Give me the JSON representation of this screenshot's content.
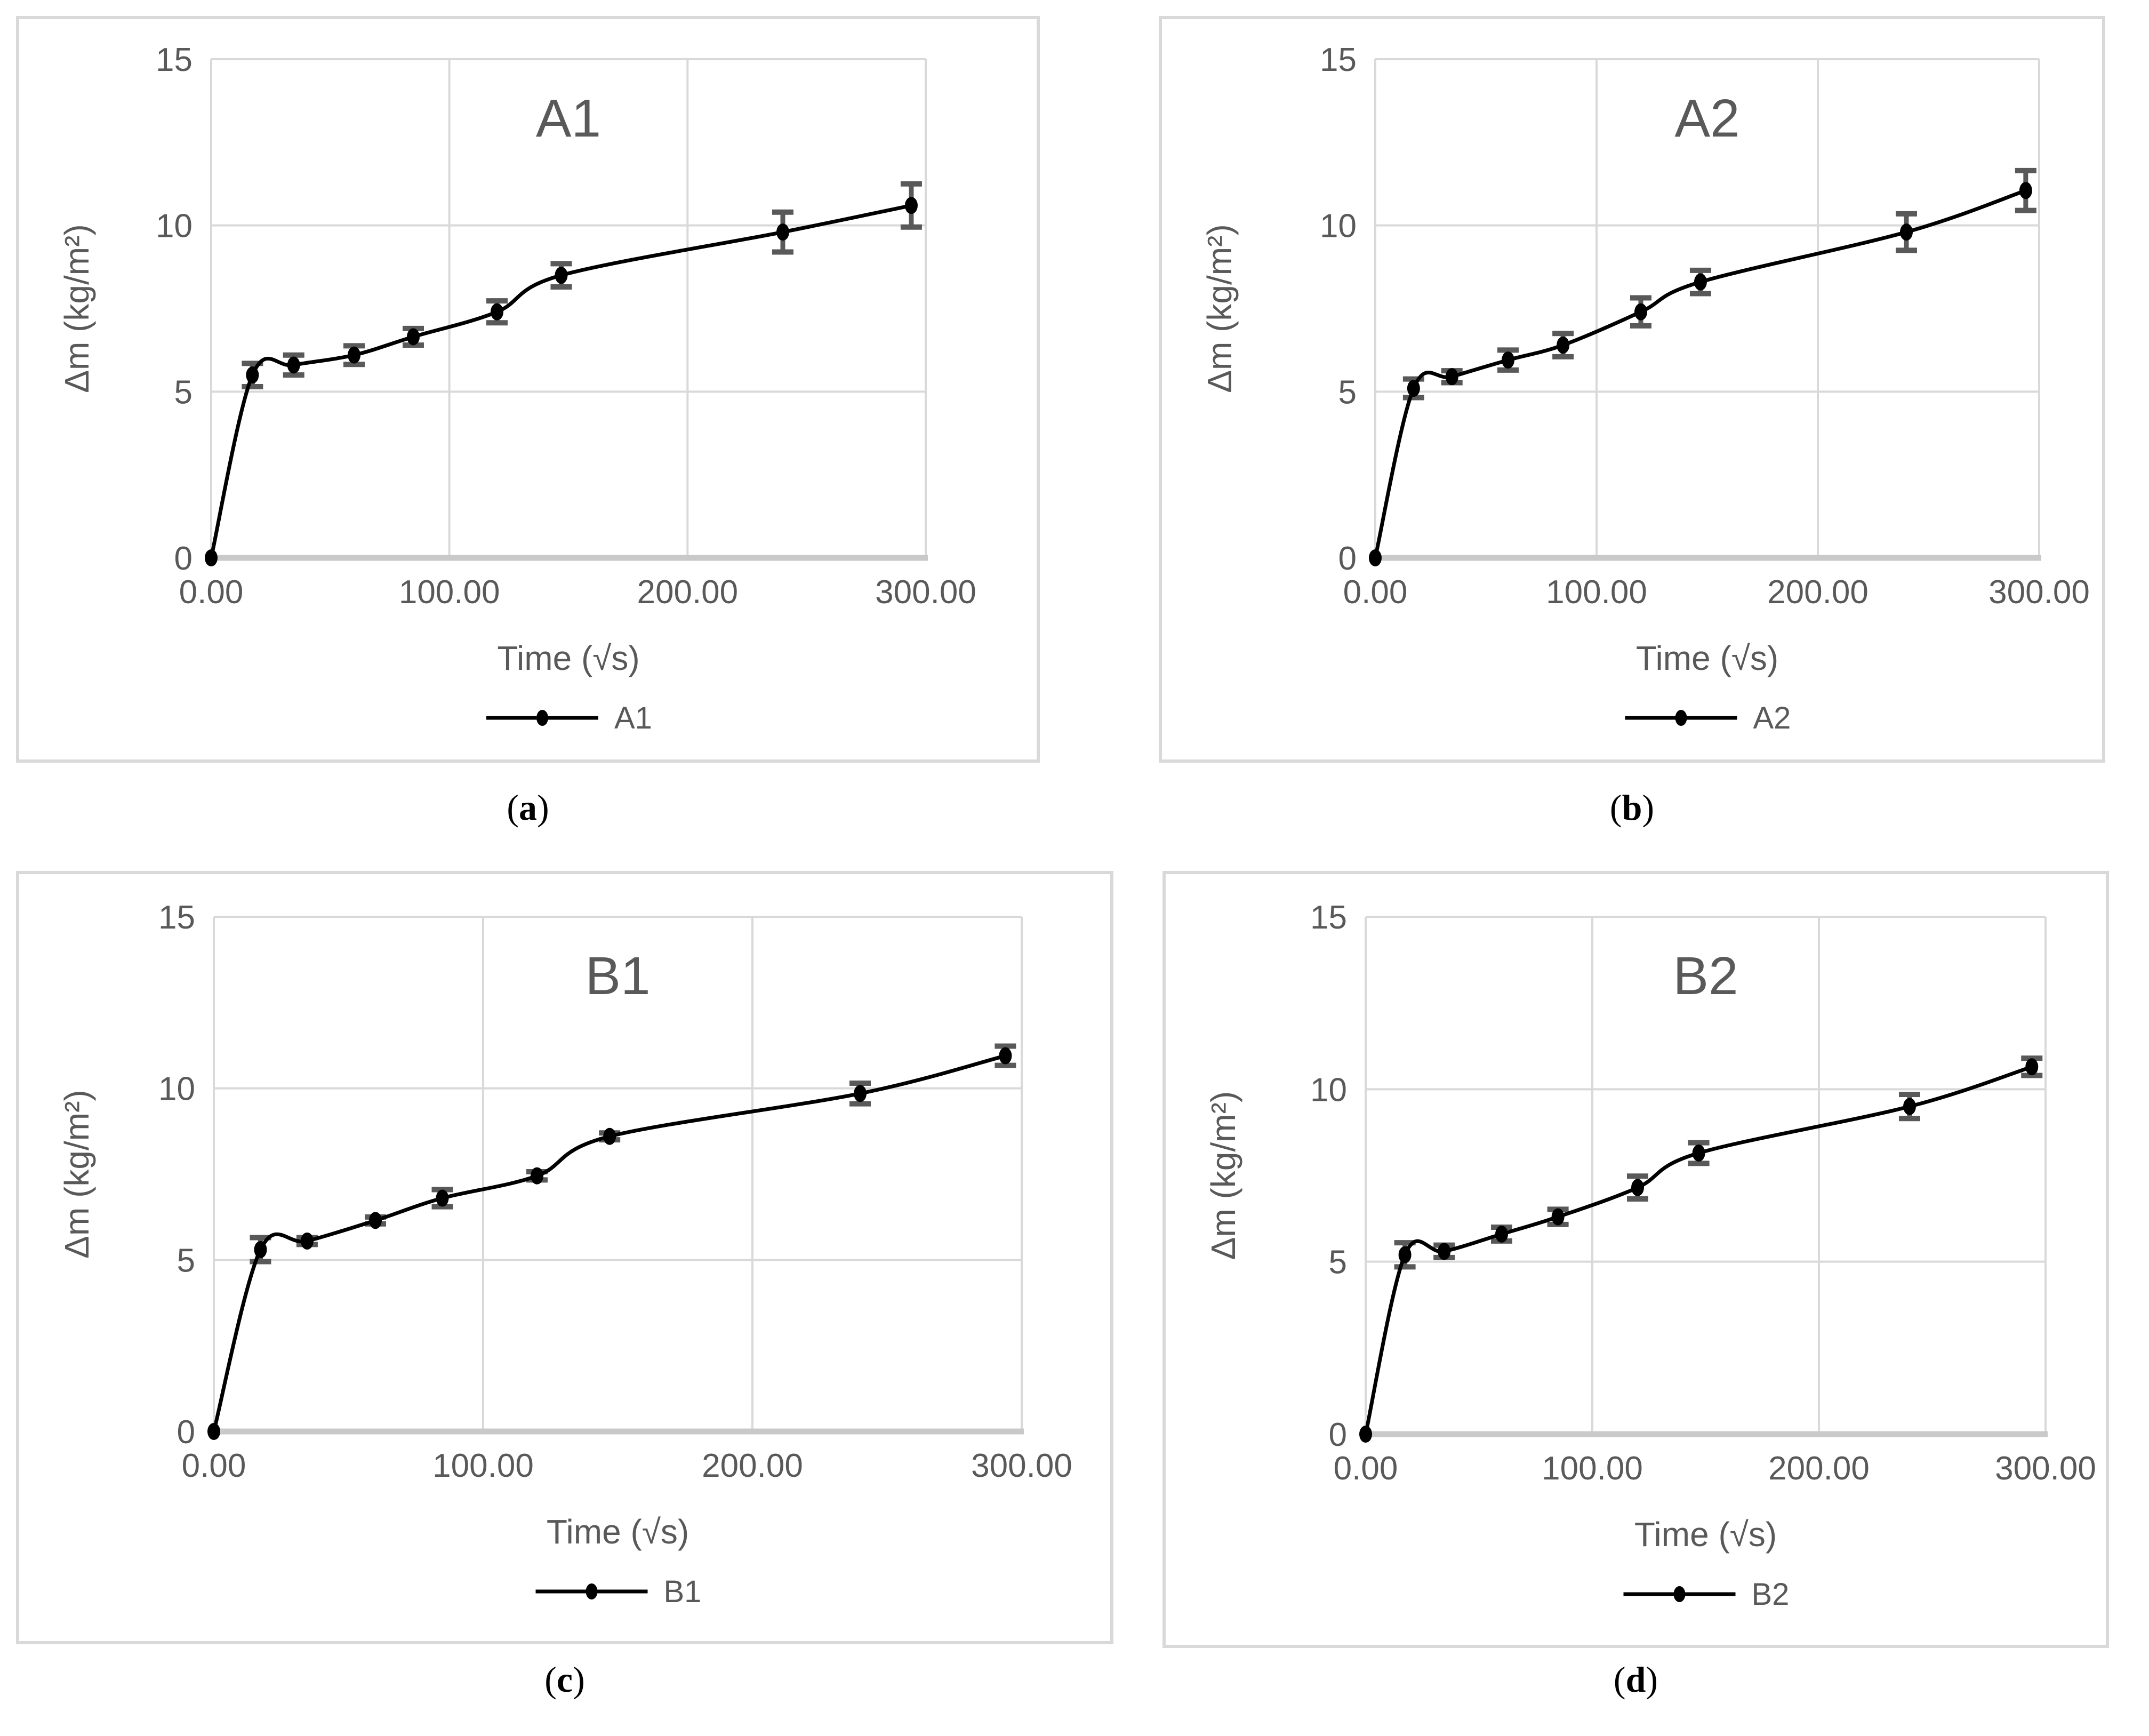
{
  "figure": {
    "description": "Capillary water absorption curves with error bars for four mortar samples",
    "background": "#ffffff"
  },
  "styles": {
    "series_color": "#000000",
    "marker_color": "#000000",
    "error_bar_color": "#595959",
    "gridline_color": "#d9d9d9",
    "axis_baseline_color": "#c9c9c9",
    "axis_text_color": "#595959",
    "panel_border_color": "#d9d9d9",
    "caption_color": "#000000"
  },
  "captions": [
    {
      "pre": "(",
      "letter": "a",
      "post": ")"
    },
    {
      "pre": "(",
      "letter": "b",
      "post": ")"
    },
    {
      "pre": "(",
      "letter": "c",
      "post": ")"
    },
    {
      "pre": "(",
      "letter": "d",
      "post": ")"
    }
  ],
  "chart_data": [
    {
      "id": "A1",
      "type": "line",
      "title": "A1",
      "legend": "A1",
      "legend_position": "bottom",
      "xlabel": "Time (√s)",
      "ylabel": "Δm (kg/m²)",
      "xlim": [
        0,
        300
      ],
      "ylim": [
        0,
        15
      ],
      "xtick_values": [
        0,
        100,
        200,
        300
      ],
      "xtick_labels": [
        "0.00",
        "100.00",
        "200.00",
        "300.00"
      ],
      "ytick_values": [
        0,
        5,
        10,
        15
      ],
      "ytick_labels": [
        "0",
        "5",
        "10",
        "15"
      ],
      "grid": true,
      "x": [
        0,
        17.32,
        34.64,
        60.0,
        84.85,
        120.0,
        146.97,
        240.0,
        293.94
      ],
      "y": [
        0,
        5.5,
        5.8,
        6.1,
        6.65,
        7.4,
        8.5,
        9.8,
        10.6
      ],
      "yerr": [
        0,
        0.35,
        0.3,
        0.28,
        0.25,
        0.33,
        0.35,
        0.6,
        0.65
      ]
    },
    {
      "id": "A2",
      "type": "line",
      "title": "A2",
      "legend": "A2",
      "legend_position": "bottom",
      "xlabel": "Time (√s)",
      "ylabel": "Δm (kg/m²)",
      "xlim": [
        0,
        300
      ],
      "ylim": [
        0,
        15
      ],
      "xtick_values": [
        0,
        100,
        200,
        300
      ],
      "xtick_labels": [
        "0.00",
        "100.00",
        "200.00",
        "300.00"
      ],
      "ytick_values": [
        0,
        5,
        10,
        15
      ],
      "ytick_labels": [
        "0",
        "5",
        "10",
        "15"
      ],
      "grid": true,
      "x": [
        0,
        17.32,
        34.64,
        60.0,
        84.85,
        120.0,
        146.97,
        240.0,
        293.94
      ],
      "y": [
        0,
        5.1,
        5.45,
        5.95,
        6.4,
        7.4,
        8.3,
        9.8,
        11.05
      ],
      "yerr": [
        0,
        0.28,
        0.18,
        0.3,
        0.35,
        0.42,
        0.35,
        0.55,
        0.6
      ]
    },
    {
      "id": "B1",
      "type": "line",
      "title": "B1",
      "legend": "B1",
      "legend_position": "bottom",
      "xlabel": "Time (√s)",
      "ylabel": "Δm (kg/m²)",
      "xlim": [
        0,
        300
      ],
      "ylim": [
        0,
        15
      ],
      "xtick_values": [
        0,
        100,
        200,
        300
      ],
      "xtick_labels": [
        "0.00",
        "100.00",
        "200.00",
        "300.00"
      ],
      "ytick_values": [
        0,
        5,
        10,
        15
      ],
      "ytick_labels": [
        "0",
        "5",
        "10",
        "15"
      ],
      "grid": true,
      "x": [
        0,
        17.32,
        34.64,
        60.0,
        84.85,
        120.0,
        146.97,
        240.0,
        293.94
      ],
      "y": [
        0,
        5.3,
        5.55,
        6.15,
        6.8,
        7.45,
        8.6,
        9.85,
        10.95
      ],
      "yerr": [
        0,
        0.35,
        0.1,
        0.1,
        0.25,
        0.12,
        0.1,
        0.3,
        0.28
      ]
    },
    {
      "id": "B2",
      "type": "line",
      "title": "B2",
      "legend": "B2",
      "legend_position": "bottom",
      "xlabel": "Time (√s)",
      "ylabel": "Δm (kg/m²)",
      "xlim": [
        0,
        300
      ],
      "ylim": [
        0,
        15
      ],
      "xtick_values": [
        0,
        100,
        200,
        300
      ],
      "xtick_labels": [
        "0.00",
        "100.00",
        "200.00",
        "300.00"
      ],
      "ytick_values": [
        0,
        5,
        10,
        15
      ],
      "ytick_labels": [
        "0",
        "5",
        "10",
        "15"
      ],
      "grid": true,
      "x": [
        0,
        17.32,
        34.64,
        60.0,
        84.85,
        120.0,
        146.97,
        240.0,
        293.94
      ],
      "y": [
        0,
        5.2,
        5.3,
        5.8,
        6.3,
        7.15,
        8.15,
        9.5,
        10.65
      ],
      "yerr": [
        0,
        0.35,
        0.18,
        0.2,
        0.22,
        0.33,
        0.3,
        0.35,
        0.25
      ]
    }
  ]
}
